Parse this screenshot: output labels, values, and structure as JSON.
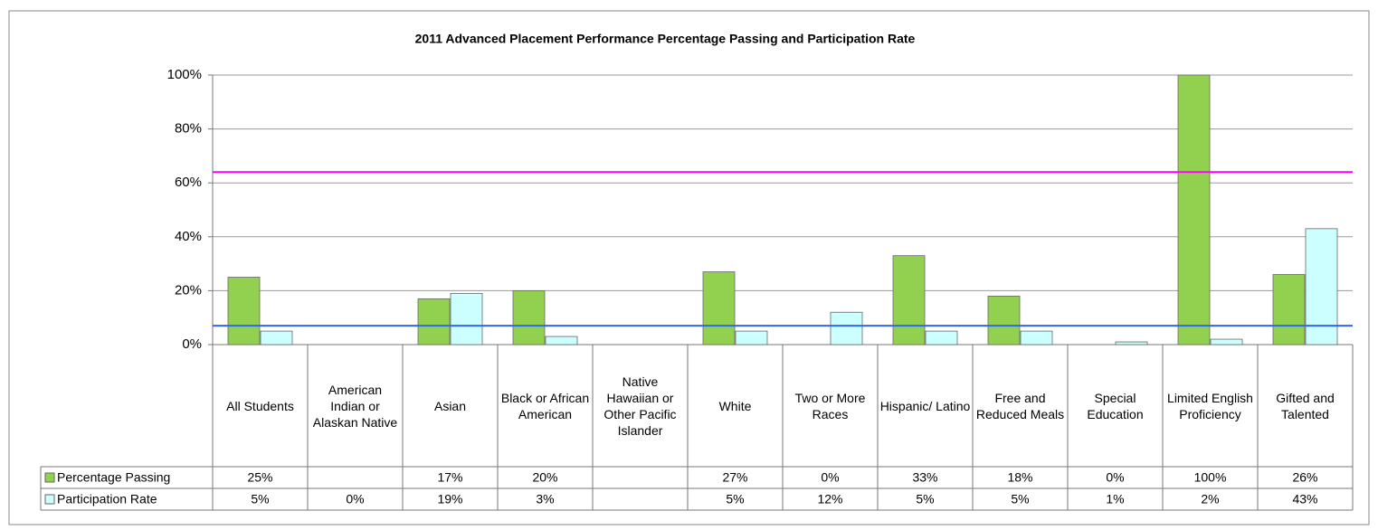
{
  "chart_data": {
    "type": "bar",
    "title": "2011 Advanced Placement Performance Percentage Passing and Participation Rate",
    "categories": [
      "All Students",
      "American Indian or Alaskan Native",
      "Asian",
      "Black or African American",
      "Native Hawaiian or Other Pacific Islander",
      "White",
      "Two or More Races",
      "Hispanic/ Latino",
      "Free and Reduced Meals",
      "Special Education",
      "Limited English Proficiency",
      "Gifted and Talented"
    ],
    "series": [
      {
        "name": "Percentage Passing",
        "color": "#92d050",
        "values": [
          25,
          null,
          17,
          20,
          null,
          27,
          0,
          33,
          18,
          0,
          100,
          26
        ],
        "value_labels": [
          "25%",
          null,
          "17%",
          "20%",
          null,
          "27%",
          "0%",
          "33%",
          "18%",
          "0%",
          "100%",
          "26%"
        ]
      },
      {
        "name": "Participation Rate",
        "color": "#ccffff",
        "values": [
          5,
          0,
          19,
          3,
          null,
          5,
          12,
          5,
          5,
          1,
          2,
          43
        ],
        "value_labels": [
          "5%",
          "0%",
          "19%",
          "3%",
          null,
          "5%",
          "12%",
          "5%",
          "5%",
          "1%",
          "2%",
          "43%"
        ]
      }
    ],
    "reference_lines": [
      {
        "value": 64,
        "color": "#ff00ff"
      },
      {
        "value": 7,
        "color": "#3366ee"
      }
    ],
    "ylim": [
      0,
      100
    ],
    "yticks": [
      {
        "value": 0,
        "label": "0%"
      },
      {
        "value": 20,
        "label": "20%"
      },
      {
        "value": 40,
        "label": "40%"
      },
      {
        "value": 60,
        "label": "60%"
      },
      {
        "value": 80,
        "label": "80%"
      },
      {
        "value": 100,
        "label": "100%"
      }
    ],
    "grid": true
  }
}
